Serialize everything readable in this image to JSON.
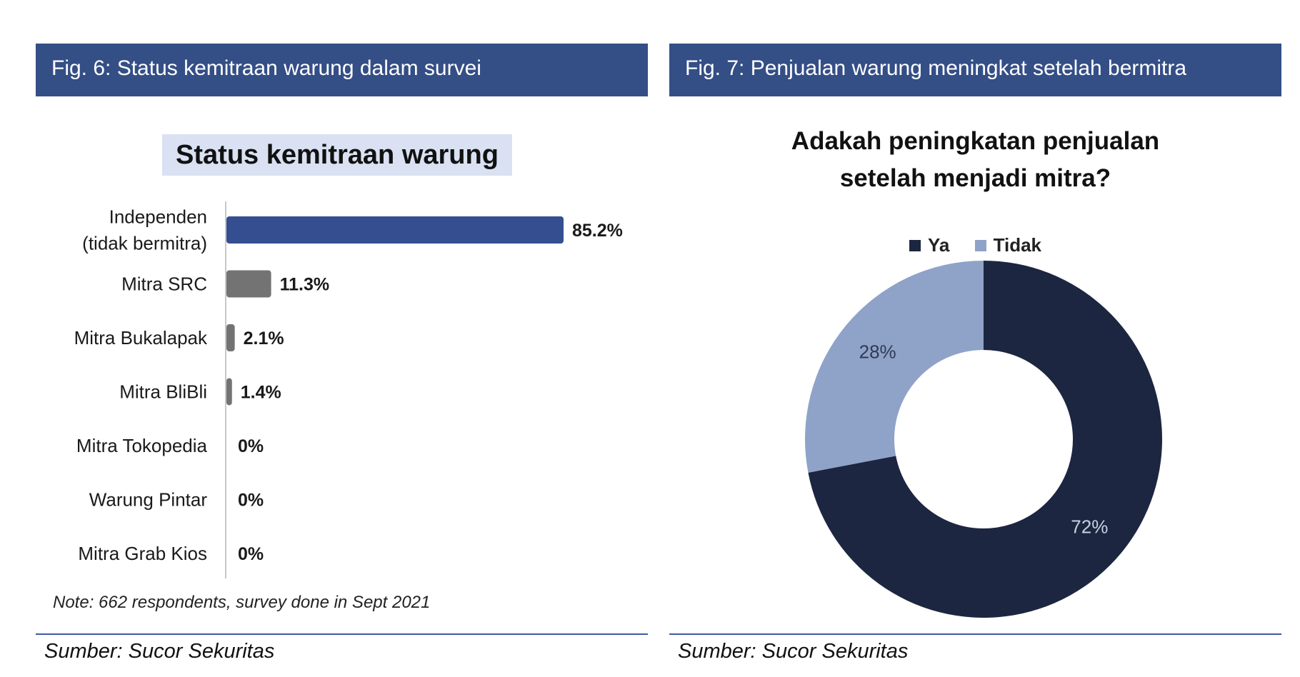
{
  "fig6": {
    "header": "Fig. 6: Status kemitraan warung dalam survei",
    "note": "Note: 662 respondents, survey done in Sept 2021",
    "source": "Sumber: Sucor Sekuritas"
  },
  "fig7": {
    "header": "Fig. 7: Penjualan warung meningkat setelah bermitra",
    "source": "Sumber: Sucor Sekuritas"
  },
  "chart_data": [
    {
      "type": "bar",
      "orientation": "horizontal",
      "title": "Status kemitraan warung",
      "categories": [
        [
          "Independen",
          "(tidak bermitra)"
        ],
        [
          "Mitra SRC"
        ],
        [
          "Mitra Bukalapak"
        ],
        [
          "Mitra BliBli"
        ],
        [
          "Mitra Tokopedia"
        ],
        [
          "Warung Pintar"
        ],
        [
          "Mitra Grab Kios"
        ]
      ],
      "values": [
        85.2,
        11.3,
        2.1,
        1.4,
        0,
        0,
        0
      ],
      "value_labels": [
        "85.2%",
        "11.3%",
        "2.1%",
        "1.4%",
        "0%",
        "0%",
        "0%"
      ],
      "colors": [
        "#344e8f",
        "#737373",
        "#737373",
        "#737373",
        "#737373",
        "#737373",
        "#737373"
      ],
      "xlim": [
        0,
        85.2
      ],
      "grid": false
    },
    {
      "type": "pie",
      "style": "donut",
      "title_lines": [
        "Adakah peningkatan penjualan",
        "setelah menjadi mitra?"
      ],
      "labels": [
        "Ya",
        "Tidak"
      ],
      "values": [
        72,
        28
      ],
      "value_labels": [
        "72%",
        "28%"
      ],
      "colors": [
        "#1c2640",
        "#8fa2c8"
      ],
      "legend_position": "top"
    }
  ]
}
